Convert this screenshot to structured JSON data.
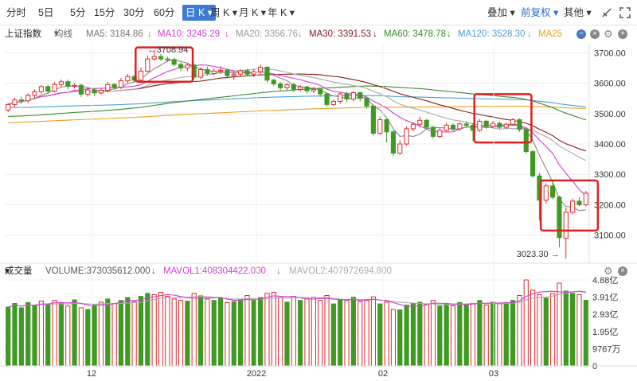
{
  "toolbar": {
    "periods": [
      "分时",
      "5日",
      "5分",
      "15分",
      "30分",
      "60分",
      "日 K",
      "周 K",
      "月 K",
      "年 K"
    ],
    "active_period": "日 K",
    "overlay_label": "叠加",
    "adjust_label": "前复权",
    "other_label": "其他"
  },
  "main_legend": {
    "index_name": "上证指数",
    "ma_toggle": "均线",
    "ma5": "MA5: 3184.86",
    "ma10": "MA10: 3245.29",
    "ma20": "MA20: 3356.76",
    "ma30": "MA30: 3391.53",
    "ma60": "MA60: 3478.78",
    "ma120": "MA120: 3528.30",
    "ma25": "MA25"
  },
  "volume_legend": {
    "title": "成交量",
    "volume": "VOLUME:373035612.000",
    "mavol1": "MAVOL1:408304422.000",
    "mavol2": "MAVOL2:407972694.800"
  },
  "colors": {
    "up": "#e0292e",
    "down": "#3f9a22",
    "ma5": "#888888",
    "ma10": "#d63ed6",
    "ma20": "#aaaaaa",
    "ma30": "#8b1a1a",
    "ma60": "#3a8a2a",
    "ma120": "#4aa0d8",
    "ma25": "#f0a020",
    "accent": "#3e7bd6",
    "highlight_box": "#e02020"
  },
  "chart_data": {
    "type": "candlestick",
    "y_ticks": [
      "3700.00",
      "3600.00",
      "3500.00",
      "3400.00",
      "3300.00",
      "3200.00",
      "3100.00"
    ],
    "ylim": [
      3010,
      3730
    ],
    "x_tick_labels": [
      "12",
      "2022",
      "02",
      "03"
    ],
    "annotations": {
      "high": "3708.94",
      "low": "3023.30"
    },
    "candles": [
      [
        3512,
        3530,
        3505,
        3535
      ],
      [
        3530,
        3545,
        3520,
        3552
      ],
      [
        3545,
        3542,
        3532,
        3556
      ],
      [
        3542,
        3560,
        3535,
        3566
      ],
      [
        3560,
        3572,
        3550,
        3580
      ],
      [
        3572,
        3589,
        3566,
        3595
      ],
      [
        3589,
        3574,
        3565,
        3594
      ],
      [
        3574,
        3596,
        3570,
        3604
      ],
      [
        3596,
        3605,
        3588,
        3612
      ],
      [
        3605,
        3590,
        3580,
        3612
      ],
      [
        3590,
        3593,
        3582,
        3600
      ],
      [
        3593,
        3564,
        3555,
        3598
      ],
      [
        3564,
        3578,
        3556,
        3586
      ],
      [
        3578,
        3568,
        3558,
        3584
      ],
      [
        3568,
        3577,
        3562,
        3585
      ],
      [
        3577,
        3596,
        3570,
        3604
      ],
      [
        3596,
        3587,
        3580,
        3600
      ],
      [
        3587,
        3608,
        3580,
        3618
      ],
      [
        3608,
        3622,
        3600,
        3630
      ],
      [
        3622,
        3610,
        3602,
        3626
      ],
      [
        3610,
        3640,
        3605,
        3652
      ],
      [
        3640,
        3680,
        3636,
        3692
      ],
      [
        3680,
        3688,
        3674,
        3709
      ],
      [
        3688,
        3680,
        3674,
        3696
      ],
      [
        3680,
        3678,
        3670,
        3688
      ],
      [
        3678,
        3662,
        3655,
        3684
      ],
      [
        3662,
        3650,
        3640,
        3668
      ],
      [
        3650,
        3660,
        3640,
        3666
      ],
      [
        3660,
        3620,
        3612,
        3665
      ],
      [
        3620,
        3645,
        3615,
        3652
      ],
      [
        3645,
        3632,
        3625,
        3655
      ],
      [
        3632,
        3640,
        3626,
        3648
      ],
      [
        3640,
        3643,
        3630,
        3656
      ],
      [
        3643,
        3625,
        3615,
        3648
      ],
      [
        3625,
        3630,
        3612,
        3638
      ],
      [
        3630,
        3641,
        3620,
        3646
      ],
      [
        3641,
        3630,
        3622,
        3648
      ],
      [
        3630,
        3638,
        3620,
        3646
      ],
      [
        3638,
        3653,
        3630,
        3660
      ],
      [
        3653,
        3610,
        3602,
        3655
      ],
      [
        3610,
        3598,
        3590,
        3615
      ],
      [
        3598,
        3585,
        3576,
        3604
      ],
      [
        3585,
        3595,
        3578,
        3600
      ],
      [
        3595,
        3580,
        3570,
        3602
      ],
      [
        3580,
        3588,
        3572,
        3594
      ],
      [
        3588,
        3575,
        3566,
        3592
      ],
      [
        3575,
        3580,
        3568,
        3588
      ],
      [
        3580,
        3565,
        3555,
        3585
      ],
      [
        3565,
        3530,
        3522,
        3568
      ],
      [
        3530,
        3540,
        3525,
        3548
      ],
      [
        3540,
        3565,
        3532,
        3570
      ],
      [
        3565,
        3548,
        3538,
        3572
      ],
      [
        3548,
        3569,
        3540,
        3574
      ],
      [
        3569,
        3550,
        3540,
        3572
      ],
      [
        3550,
        3525,
        3516,
        3555
      ],
      [
        3525,
        3435,
        3428,
        3530
      ],
      [
        3435,
        3480,
        3430,
        3490
      ],
      [
        3480,
        3440,
        3405,
        3485
      ],
      [
        3440,
        3370,
        3360,
        3445
      ],
      [
        3370,
        3400,
        3365,
        3412
      ],
      [
        3400,
        3450,
        3395,
        3458
      ],
      [
        3450,
        3465,
        3442,
        3472
      ],
      [
        3465,
        3478,
        3455,
        3490
      ],
      [
        3478,
        3455,
        3448,
        3483
      ],
      [
        3455,
        3425,
        3418,
        3460
      ],
      [
        3425,
        3445,
        3420,
        3452
      ],
      [
        3445,
        3462,
        3438,
        3470
      ],
      [
        3462,
        3450,
        3444,
        3468
      ],
      [
        3450,
        3466,
        3444,
        3472
      ],
      [
        3466,
        3462,
        3455,
        3475
      ],
      [
        3462,
        3445,
        3410,
        3468
      ],
      [
        3445,
        3475,
        3440,
        3482
      ],
      [
        3475,
        3458,
        3450,
        3480
      ],
      [
        3458,
        3468,
        3452,
        3476
      ],
      [
        3468,
        3455,
        3448,
        3474
      ],
      [
        3455,
        3465,
        3450,
        3470
      ],
      [
        3465,
        3480,
        3460,
        3486
      ],
      [
        3480,
        3448,
        3440,
        3484
      ],
      [
        3448,
        3375,
        3368,
        3455
      ],
      [
        3375,
        3295,
        3290,
        3380
      ],
      [
        3295,
        3215,
        3148,
        3305
      ],
      [
        3215,
        3262,
        3205,
        3270
      ],
      [
        3262,
        3225,
        3218,
        3280
      ],
      [
        3225,
        3092,
        3060,
        3230
      ],
      [
        3090,
        3175,
        3023,
        3190
      ],
      [
        3175,
        3212,
        3168,
        3220
      ],
      [
        3212,
        3200,
        3195,
        3225
      ],
      [
        3200,
        3238,
        3195,
        3246
      ]
    ],
    "volume_ticks": [
      "4.88亿",
      "3.91亿",
      "2.93亿",
      "1.95亿",
      "9767万",
      "0"
    ],
    "volume_max": 488000000,
    "volumes": [
      [
        334,
        false
      ],
      [
        355,
        false
      ],
      [
        330,
        false
      ],
      [
        360,
        false
      ],
      [
        345,
        false
      ],
      [
        368,
        true
      ],
      [
        352,
        false
      ],
      [
        372,
        true
      ],
      [
        360,
        false
      ],
      [
        340,
        true
      ],
      [
        375,
        false
      ],
      [
        330,
        true
      ],
      [
        320,
        false
      ],
      [
        345,
        false
      ],
      [
        362,
        true
      ],
      [
        380,
        false
      ],
      [
        355,
        true
      ],
      [
        372,
        false
      ],
      [
        388,
        false
      ],
      [
        365,
        true
      ],
      [
        395,
        false
      ],
      [
        412,
        false
      ],
      [
        405,
        true
      ],
      [
        418,
        true
      ],
      [
        395,
        true
      ],
      [
        380,
        true
      ],
      [
        372,
        true
      ],
      [
        368,
        false
      ],
      [
        412,
        true
      ],
      [
        398,
        false
      ],
      [
        380,
        true
      ],
      [
        372,
        false
      ],
      [
        385,
        false
      ],
      [
        360,
        true
      ],
      [
        365,
        false
      ],
      [
        380,
        false
      ],
      [
        400,
        true
      ],
      [
        372,
        false
      ],
      [
        388,
        false
      ],
      [
        412,
        true
      ],
      [
        418,
        true
      ],
      [
        388,
        true
      ],
      [
        362,
        false
      ],
      [
        395,
        true
      ],
      [
        372,
        false
      ],
      [
        382,
        true
      ],
      [
        390,
        true
      ],
      [
        372,
        true
      ],
      [
        400,
        true
      ],
      [
        352,
        false
      ],
      [
        375,
        false
      ],
      [
        372,
        true
      ],
      [
        390,
        false
      ],
      [
        365,
        true
      ],
      [
        372,
        true
      ],
      [
        392,
        true
      ],
      [
        352,
        false
      ],
      [
        362,
        true
      ],
      [
        320,
        true
      ],
      [
        318,
        false
      ],
      [
        345,
        false
      ],
      [
        355,
        false
      ],
      [
        362,
        false
      ],
      [
        350,
        true
      ],
      [
        372,
        true
      ],
      [
        340,
        false
      ],
      [
        352,
        false
      ],
      [
        342,
        true
      ],
      [
        360,
        false
      ],
      [
        348,
        false
      ],
      [
        355,
        true
      ],
      [
        372,
        false
      ],
      [
        346,
        true
      ],
      [
        362,
        false
      ],
      [
        352,
        true
      ],
      [
        360,
        false
      ],
      [
        372,
        false
      ],
      [
        400,
        true
      ],
      [
        488,
        true
      ],
      [
        430,
        true
      ],
      [
        405,
        true
      ],
      [
        385,
        false
      ],
      [
        412,
        true
      ],
      [
        470,
        true
      ],
      [
        425,
        false
      ],
      [
        412,
        false
      ],
      [
        405,
        true
      ],
      [
        373,
        false
      ]
    ]
  }
}
